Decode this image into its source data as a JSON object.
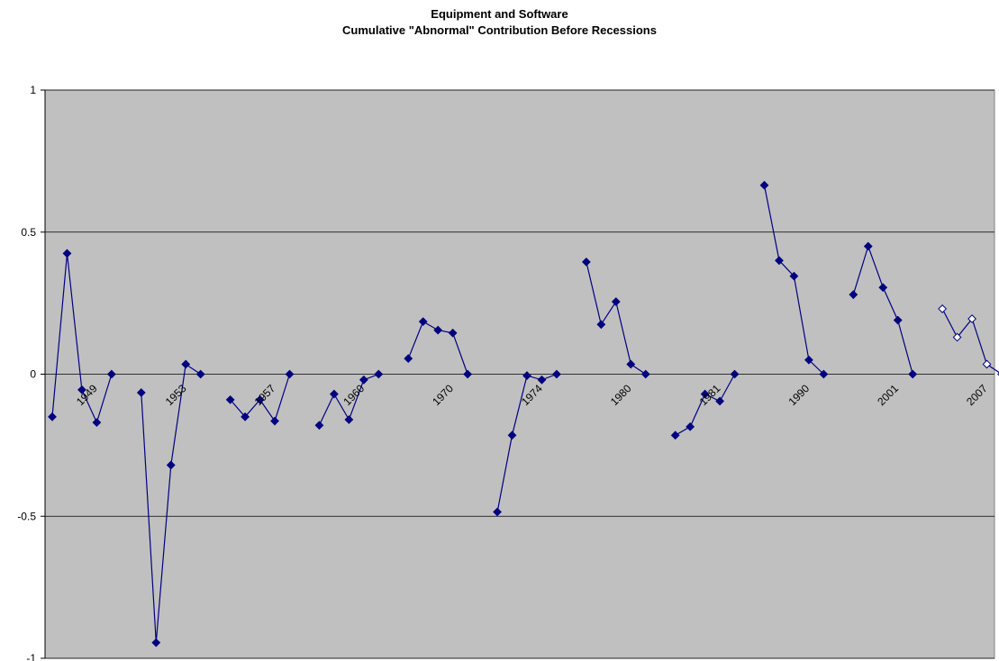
{
  "chart_data": {
    "type": "line",
    "title": "Equipment and Software",
    "subtitle": "Cumulative \"Abnormal\" Contribution Before Recessions",
    "ylim": [
      -1,
      1
    ],
    "yticks": [
      1,
      0.5,
      0,
      -0.5,
      -1
    ],
    "ytick_labels": [
      "1",
      "0.5",
      "0",
      "-0.5",
      "-1"
    ],
    "grid": true,
    "plot_background": "#c0c0c0",
    "line_color": "#000080",
    "marker": "diamond",
    "x_slots": 64,
    "recessions": [
      {
        "label": "1949",
        "label_slot": 2.5,
        "start": 0,
        "values": [
          -0.15,
          0.425,
          -0.055,
          -0.17,
          0.0
        ]
      },
      {
        "label": "1953",
        "label_slot": 8.5,
        "start": 6,
        "values": [
          -0.065,
          -0.945,
          -0.32,
          0.035,
          0.0
        ]
      },
      {
        "label": "1957",
        "label_slot": 14.5,
        "start": 12,
        "values": [
          -0.09,
          -0.15,
          -0.09,
          -0.165,
          0.0
        ]
      },
      {
        "label": "1960",
        "label_slot": 20.5,
        "start": 18,
        "values": [
          -0.18,
          -0.07,
          -0.16,
          -0.02,
          0.0
        ]
      },
      {
        "label": "1970",
        "label_slot": 26.5,
        "start": 24,
        "values": [
          0.055,
          0.185,
          0.155,
          0.145,
          0.0
        ]
      },
      {
        "label": "1974",
        "label_slot": 32.5,
        "start": 30,
        "values": [
          -0.485,
          -0.215,
          -0.005,
          -0.02,
          0.0
        ]
      },
      {
        "label": "1980",
        "label_slot": 38.5,
        "start": 36,
        "values": [
          0.395,
          0.175,
          0.255,
          0.035,
          0.0
        ]
      },
      {
        "label": "1981",
        "label_slot": 44.5,
        "start": 42,
        "values": [
          -0.215,
          -0.185,
          -0.07,
          -0.095,
          0.0
        ]
      },
      {
        "label": "1990",
        "label_slot": 50.5,
        "start": 48,
        "values": [
          0.665,
          0.4,
          0.345,
          0.05,
          0.0
        ]
      },
      {
        "label": "2001",
        "label_slot": 56.5,
        "start": 54,
        "values": [
          0.28,
          0.45,
          0.305,
          0.19,
          0.0
        ]
      },
      {
        "label": "2007",
        "label_slot": 62.5,
        "start": 60,
        "values": [
          0.23,
          0.13,
          0.195,
          0.035,
          0.0
        ],
        "hollow_markers": true
      }
    ]
  }
}
